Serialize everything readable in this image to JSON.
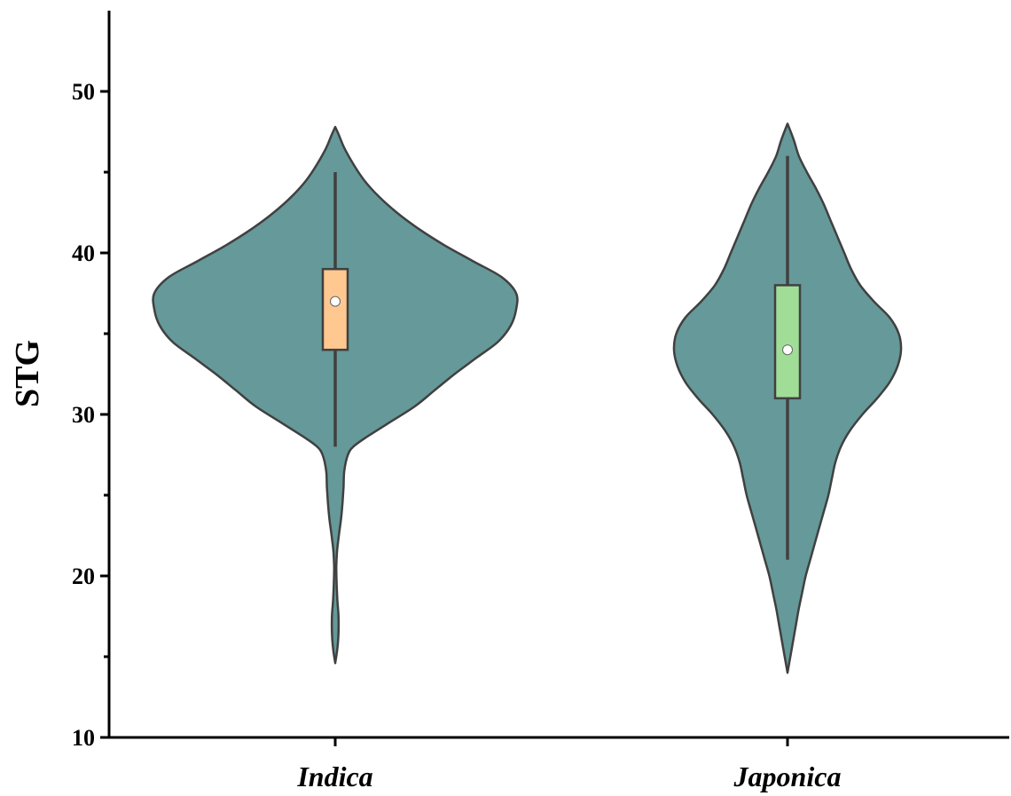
{
  "chart_data": {
    "type": "violin",
    "title": "",
    "xlabel": "",
    "ylabel": "STG",
    "ylim": [
      10,
      55
    ],
    "yticks": [
      10,
      20,
      30,
      40,
      50
    ],
    "yminor_ticks": [
      15,
      25,
      35,
      45
    ],
    "grid": false,
    "categories": [
      "Indica",
      "Japonica"
    ],
    "violin_color": "#669999",
    "outline_color": "#404040",
    "series": [
      {
        "category": "Indica",
        "box_color": "#FFC891",
        "whisker_low": 28,
        "q1": 34,
        "median": 37,
        "q3": 39,
        "whisker_high": 45,
        "density_min": 14.6,
        "density_max": 47.8,
        "density_profile": [
          [
            14.6,
            0.0
          ],
          [
            15.5,
            0.012
          ],
          [
            16.5,
            0.018
          ],
          [
            17.5,
            0.018
          ],
          [
            18.5,
            0.012
          ],
          [
            19.5,
            0.008
          ],
          [
            20.5,
            0.006
          ],
          [
            21.5,
            0.01
          ],
          [
            22.5,
            0.02
          ],
          [
            23.5,
            0.032
          ],
          [
            24.5,
            0.04
          ],
          [
            25.5,
            0.046
          ],
          [
            26.5,
            0.05
          ],
          [
            27.5,
            0.07
          ],
          [
            28.0,
            0.1
          ],
          [
            28.5,
            0.16
          ],
          [
            29.5,
            0.3
          ],
          [
            30.5,
            0.44
          ],
          [
            31.5,
            0.55
          ],
          [
            32.5,
            0.66
          ],
          [
            33.5,
            0.78
          ],
          [
            34.5,
            0.9
          ],
          [
            35.5,
            0.97
          ],
          [
            36.5,
            1.0
          ],
          [
            37.5,
            1.0
          ],
          [
            38.5,
            0.92
          ],
          [
            39.5,
            0.76
          ],
          [
            40.5,
            0.6
          ],
          [
            41.5,
            0.46
          ],
          [
            42.5,
            0.34
          ],
          [
            43.5,
            0.24
          ],
          [
            44.5,
            0.16
          ],
          [
            45.5,
            0.1
          ],
          [
            46.5,
            0.05
          ],
          [
            47.3,
            0.02
          ],
          [
            47.8,
            0.0
          ]
        ]
      },
      {
        "category": "Japonica",
        "box_color": "#A0DE98",
        "whisker_low": 21,
        "q1": 31,
        "median": 34,
        "q3": 38,
        "whisker_high": 46,
        "density_min": 14.0,
        "density_max": 48.0,
        "density_profile": [
          [
            14.0,
            0.0
          ],
          [
            15.0,
            0.025
          ],
          [
            16.0,
            0.05
          ],
          [
            17.0,
            0.075
          ],
          [
            18.0,
            0.1
          ],
          [
            19.0,
            0.13
          ],
          [
            20.0,
            0.16
          ],
          [
            21.0,
            0.2
          ],
          [
            22.0,
            0.24
          ],
          [
            23.0,
            0.28
          ],
          [
            24.0,
            0.32
          ],
          [
            25.0,
            0.36
          ],
          [
            26.0,
            0.39
          ],
          [
            27.0,
            0.42
          ],
          [
            28.0,
            0.47
          ],
          [
            29.0,
            0.55
          ],
          [
            30.0,
            0.66
          ],
          [
            31.0,
            0.79
          ],
          [
            32.0,
            0.9
          ],
          [
            33.0,
            0.97
          ],
          [
            34.0,
            1.0
          ],
          [
            35.0,
            0.98
          ],
          [
            36.0,
            0.9
          ],
          [
            37.0,
            0.76
          ],
          [
            38.0,
            0.64
          ],
          [
            39.0,
            0.56
          ],
          [
            40.0,
            0.5
          ],
          [
            41.0,
            0.44
          ],
          [
            42.0,
            0.38
          ],
          [
            43.0,
            0.32
          ],
          [
            44.0,
            0.25
          ],
          [
            45.0,
            0.17
          ],
          [
            46.0,
            0.1
          ],
          [
            47.0,
            0.055
          ],
          [
            48.0,
            0.0
          ]
        ]
      }
    ]
  }
}
